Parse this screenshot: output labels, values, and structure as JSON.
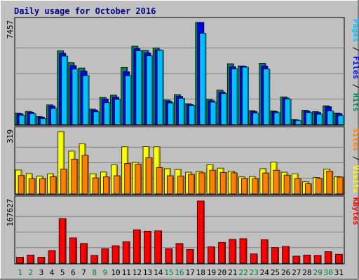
{
  "chart_data": {
    "type": "bar",
    "title": "Daily usage for October 2016",
    "days": [
      "1",
      "2",
      "3",
      "4",
      "5",
      "6",
      "7",
      "8",
      "9",
      "10",
      "11",
      "12",
      "13",
      "14",
      "15",
      "16",
      "17",
      "18",
      "19",
      "20",
      "21",
      "22",
      "23",
      "24",
      "25",
      "26",
      "27",
      "28",
      "29",
      "30",
      "31"
    ],
    "weekend_days": [
      "1",
      "2",
      "8",
      "9",
      "15",
      "16",
      "22",
      "23",
      "29",
      "30"
    ],
    "colors": {
      "hits": "#00805c",
      "files": "#0000ff",
      "pages": "#00c0ff",
      "visits": "#ffff00",
      "sites": "#ff8000",
      "kbytes": "#ff0000",
      "weekend": "#008040",
      "weekday": "#000000"
    },
    "panels": [
      {
        "name": "hits",
        "ymax_label": "7457",
        "ymax": 7457,
        "right_labels": [
          {
            "text": "Pages",
            "color": "#00c0ff"
          },
          {
            "text": " / ",
            "color": "#000000"
          },
          {
            "text": "Files",
            "color": "#0000ff"
          },
          {
            "text": " / ",
            "color": "#000000"
          },
          {
            "text": "Hits",
            "color": "#00805c"
          }
        ],
        "series": [
          {
            "name": "Hits",
            "color": "#00805c",
            "values": [
              840,
              960,
              590,
              1440,
              5380,
              4520,
              4130,
              1130,
              1980,
              2150,
              4170,
              5720,
              5410,
              5600,
              1790,
              2190,
              1530,
              7457,
              1840,
              2520,
              4440,
              4280,
              1020,
              4470,
              1000,
              2020,
              370,
              1040,
              950,
              1370,
              850
            ]
          },
          {
            "name": "Files",
            "color": "#0000ff",
            "values": [
              780,
              900,
              540,
              1360,
              5200,
              4300,
              3900,
              1060,
              1860,
              2000,
              3860,
              5540,
              5220,
              5450,
              1700,
              2060,
              1460,
              7457,
              1740,
              2380,
              4220,
              4260,
              960,
              4280,
              940,
              1940,
              340,
              980,
              880,
              1300,
              800
            ]
          },
          {
            "name": "Pages",
            "color": "#00c0ff",
            "values": [
              680,
              800,
              440,
              1180,
              5000,
              4050,
              3580,
              930,
              1600,
              1840,
              3570,
              5390,
              5020,
              5420,
              1580,
              1920,
              1390,
              6660,
              1640,
              2260,
              4060,
              4190,
              840,
              4060,
              860,
              1870,
              300,
              880,
              760,
              1000,
              650
            ]
          }
        ]
      },
      {
        "name": "visits",
        "ymax_label": "319",
        "ymax": 319,
        "right_labels": [
          {
            "text": "Sites",
            "color": "#ff8000"
          },
          {
            "text": " / ",
            "color": "#000000"
          },
          {
            "text": "Visits",
            "color": "#ffff00"
          }
        ],
        "series": [
          {
            "name": "Visits",
            "color": "#ffff00",
            "values": [
              122,
              104,
              91,
              103,
              319,
              219,
              257,
              103,
              112,
              149,
              241,
              161,
              242,
              241,
              129,
              125,
              111,
              115,
              150,
              132,
              117,
              87,
              89,
              129,
              163,
              111,
              103,
              62,
              84,
              127,
              88
            ]
          },
          {
            "name": "Sites",
            "color": "#ff8000",
            "values": [
              94,
              78,
              77,
              88,
              127,
              178,
              198,
              82,
              87,
              93,
              156,
              152,
              186,
              135,
              93,
              91,
              100,
              108,
              121,
              109,
              108,
              79,
              78,
              107,
              121,
              96,
              79,
              52,
              79,
              117,
              86
            ]
          }
        ]
      },
      {
        "name": "kbytes",
        "ymax_label": "167627",
        "ymax": 167627,
        "right_labels": [
          {
            "text": "KBytes",
            "color": "#ff0000"
          }
        ],
        "series": [
          {
            "name": "KBytes",
            "color": "#ff0000",
            "values": [
              16000,
              22000,
              16000,
              34000,
              120000,
              68000,
              53000,
              21000,
              39000,
              47000,
              58000,
              90000,
              86000,
              87000,
              39000,
              53000,
              37000,
              167627,
              44000,
              56000,
              64000,
              66000,
              25000,
              63000,
              42000,
              45000,
              19000,
              22000,
              21000,
              31000,
              24000
            ]
          }
        ]
      }
    ]
  }
}
